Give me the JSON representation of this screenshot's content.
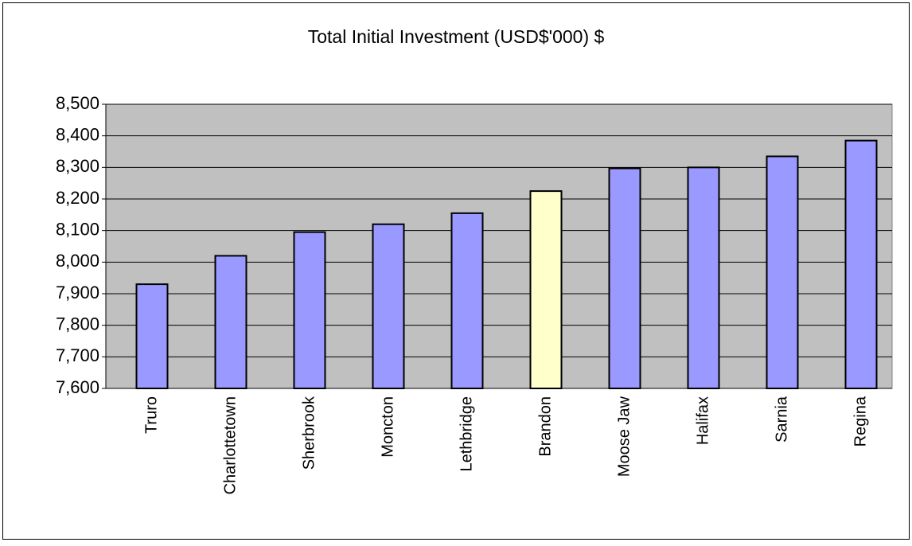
{
  "chart_data": {
    "type": "bar",
    "title": "Total Initial Investment (USD$'000) $",
    "categories": [
      "Truro",
      "Charlottetown",
      "Sherbrook",
      "Moncton",
      "Lethbridge",
      "Brandon",
      "Moose Jaw",
      "Halifax",
      "Sarnia",
      "Regina"
    ],
    "values": [
      7930,
      8020,
      8095,
      8120,
      8155,
      8225,
      8297,
      8300,
      8335,
      8385
    ],
    "colors": [
      "#9999ff",
      "#9999ff",
      "#9999ff",
      "#9999ff",
      "#9999ff",
      "#ffffcc",
      "#9999ff",
      "#9999ff",
      "#9999ff",
      "#9999ff"
    ],
    "ylim": [
      7600,
      8500
    ],
    "yticks": [
      {
        "value": 7600,
        "label": "7,600"
      },
      {
        "value": 7700,
        "label": "7,700"
      },
      {
        "value": 7800,
        "label": "7,800"
      },
      {
        "value": 7900,
        "label": "7,900"
      },
      {
        "value": 8000,
        "label": "8,000"
      },
      {
        "value": 8100,
        "label": "8,100"
      },
      {
        "value": 8200,
        "label": "8,200"
      },
      {
        "value": 8300,
        "label": "8,300"
      },
      {
        "value": 8400,
        "label": "8,400"
      },
      {
        "value": 8500,
        "label": "8,500"
      }
    ],
    "grid": true
  }
}
